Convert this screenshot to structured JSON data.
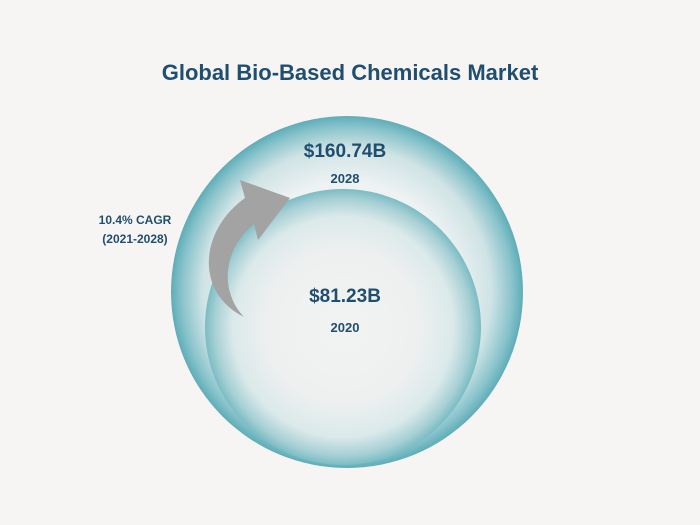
{
  "title": "Global Bio-Based Chemicals Market",
  "colors": {
    "title": "#1f4e6f",
    "bubble_edge": "#5eadb8",
    "bubble_center": "#f2f3f3",
    "arrow": "#a3a3a3",
    "background": "#f6f5f3"
  },
  "annotation": {
    "cagr": "10.4% CAGR",
    "period": "(2021-2028)"
  },
  "chart_data": {
    "type": "bubble",
    "title": "Global Bio-Based Chemicals Market",
    "unit": "USD billion",
    "series": [
      {
        "year": "2028",
        "value": 160.74,
        "label": "$160.74B"
      },
      {
        "year": "2020",
        "value": 81.23,
        "label": "$81.23B"
      }
    ],
    "annotation": {
      "cagr": "10.4% CAGR",
      "period": "(2021-2028)"
    }
  }
}
